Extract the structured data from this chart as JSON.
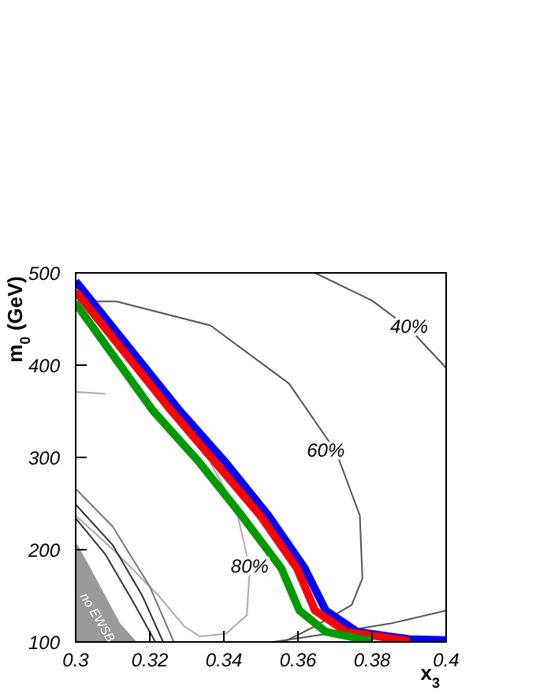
{
  "chart_data": {
    "type": "line",
    "xlabel": "x$_{3}$",
    "ylabel": "m$_{0}$ (GeV)",
    "xlim": [
      0.3,
      0.4
    ],
    "ylim": [
      100,
      500
    ],
    "xticks": [
      0.3,
      0.32,
      0.34,
      0.36,
      0.38,
      0.4
    ],
    "yticks": [
      100,
      200,
      300,
      400,
      500
    ],
    "grid": false,
    "marker": "none",
    "line_style": "solid",
    "series": [
      {
        "type": "area",
        "color": "#999999",
        "x": [
          0.3,
          0.304,
          0.308,
          0.312,
          0.3165
        ],
        "values": [
          209,
          180,
          150,
          120,
          100
        ]
      },
      {
        "type": "line",
        "color": "#555555",
        "x": [
          0.3646,
          0.38,
          0.39,
          0.4
        ],
        "values": [
          500,
          470,
          440,
          397
        ]
      },
      {
        "type": "line",
        "color": "#555555",
        "x": [
          0.3,
          0.311,
          0.3364,
          0.3576,
          0.3703,
          0.3767,
          0.3774,
          0.3745,
          0.3646,
          0.3562
        ],
        "values": [
          469,
          469,
          443,
          380,
          306,
          237,
          169,
          140,
          117,
          100
        ]
      },
      {
        "type": "line",
        "color": "#555555",
        "x": [
          0.3533,
          0.37,
          0.385,
          0.4
        ],
        "values": [
          100,
          110,
          120,
          134
        ]
      },
      {
        "type": "line",
        "color": "#aaaaaa",
        "x": [
          0.3,
          0.308,
          0.3222,
          0.3364,
          0.3434,
          0.347,
          0.3462,
          0.3406,
          0.3335,
          0.3293,
          0.3222,
          0.3109,
          0.3
        ],
        "values": [
          371,
          369,
          null,
          294,
          243,
          180,
          129,
          109,
          106,
          117,
          151,
          197,
          237
        ]
      },
      {
        "type": "line",
        "color": "#777777",
        "x": [
          0.3,
          0.31,
          0.32,
          0.3265
        ],
        "values": [
          266,
          225,
          160,
          100
        ]
      },
      {
        "type": "line",
        "color": "#333333",
        "x": [
          0.3,
          0.31,
          0.318,
          0.3236
        ],
        "values": [
          249,
          205,
          150,
          100
        ]
      },
      {
        "type": "line",
        "color": "#333333",
        "x": [
          0.3,
          0.308,
          0.316,
          0.3215
        ],
        "values": [
          234,
          195,
          140,
          100
        ]
      },
      {
        "type": "line",
        "color": "#0000ff",
        "x": [
          0.3,
          0.328,
          0.3406,
          0.352,
          0.3618,
          0.3675,
          0.376,
          0.39,
          0.4
        ],
        "values": [
          491,
          351,
          294,
          237,
          180,
          134,
          111,
          103,
          102
        ]
      },
      {
        "type": "line",
        "color": "#ff0000",
        "x": [
          0.3,
          0.3257,
          0.3378,
          0.3498,
          0.3597,
          0.3646,
          0.373,
          0.39
        ],
        "values": [
          480,
          351,
          294,
          237,
          180,
          134,
          111,
          101
        ]
      },
      {
        "type": "line",
        "color": "#009900",
        "x": [
          0.3,
          0.3208,
          0.3335,
          0.3448,
          0.3555,
          0.3604,
          0.3675,
          0.38
        ],
        "values": [
          467,
          351,
          294,
          237,
          180,
          134,
          111,
          101
        ]
      }
    ],
    "annotations": [
      {
        "text": "40%",
        "x": 0.39,
        "y": 440
      },
      {
        "text": "60%",
        "x": 0.3675,
        "y": 306
      },
      {
        "text": "80%",
        "x": 0.347,
        "y": 180
      },
      "no EWSB"
    ]
  }
}
